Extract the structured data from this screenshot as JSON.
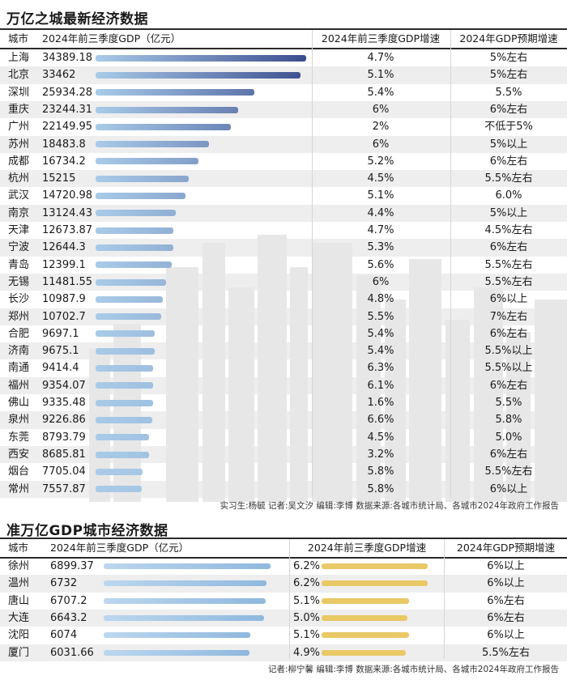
{
  "section1": {
    "title": "万亿之城最新经济数据",
    "headers": {
      "city": "城市",
      "gdp": "2024年前三季度GDP（亿元）",
      "growth": "2024年前三季度GDP增速",
      "target": "2024年GDP预期增速"
    },
    "footnote": "实习生:杨毓  记者:吴文汐  编辑:李博  数据来源:各城市统计局、各城市2024年政府工作报告"
  },
  "section2": {
    "title": "准万亿GDP城市经济数据",
    "headers": {
      "city": "城市",
      "gdp": "2024年前三季度GDP（亿元）",
      "growth": "2024年前三季度GDP增速",
      "target": "2024年GDP预期增速"
    },
    "footnote": "记者:柳宁馨  编辑:李博  数据来源:各城市统计局、各城市2024年政府工作报告"
  },
  "colors": {
    "bar_dark": "#3b4d8f",
    "bar_light": "#a9cbe8",
    "bar_gold": "#e9c866",
    "zebra": "#e8e8e8",
    "rule": "#2a2a2a"
  },
  "chart_data": [
    {
      "type": "table",
      "title": "万亿之城最新经济数据",
      "columns": [
        "城市",
        "2024年前三季度GDP（亿元）",
        "2024年前三季度GDP增速",
        "2024年GDP预期增速"
      ],
      "gdp_range": [
        0,
        34389.18
      ],
      "rows": [
        {
          "city": "上海",
          "gdp": 34389.18,
          "gdp_label": "34389.18",
          "growth": "4.7%",
          "target": "5%左右"
        },
        {
          "city": "北京",
          "gdp": 33462,
          "gdp_label": "33462",
          "growth": "5.1%",
          "target": "5%左右"
        },
        {
          "city": "深圳",
          "gdp": 25934.28,
          "gdp_label": "25934.28",
          "growth": "5.4%",
          "target": "5.5%"
        },
        {
          "city": "重庆",
          "gdp": 23244.31,
          "gdp_label": "23244.31",
          "growth": "6%",
          "target": "6%左右"
        },
        {
          "city": "广州",
          "gdp": 22149.95,
          "gdp_label": "22149.95",
          "growth": "2%",
          "target": "不低于5%"
        },
        {
          "city": "苏州",
          "gdp": 18483.8,
          "gdp_label": "18483.8",
          "growth": "6%",
          "target": "5%以上"
        },
        {
          "city": "成都",
          "gdp": 16734.2,
          "gdp_label": "16734.2",
          "growth": "5.2%",
          "target": "6%左右"
        },
        {
          "city": "杭州",
          "gdp": 15215,
          "gdp_label": "15215",
          "growth": "4.5%",
          "target": "5.5%左右"
        },
        {
          "city": "武汉",
          "gdp": 14720.98,
          "gdp_label": "14720.98",
          "growth": "5.1%",
          "target": "6.0%"
        },
        {
          "city": "南京",
          "gdp": 13124.43,
          "gdp_label": "13124.43",
          "growth": "4.4%",
          "target": "5%以上"
        },
        {
          "city": "天津",
          "gdp": 12673.87,
          "gdp_label": "12673.87",
          "growth": "4.7%",
          "target": "4.5%左右"
        },
        {
          "city": "宁波",
          "gdp": 12644.3,
          "gdp_label": "12644.3",
          "growth": "5.3%",
          "target": "6%左右"
        },
        {
          "city": "青岛",
          "gdp": 12399.1,
          "gdp_label": "12399.1",
          "growth": "5.6%",
          "target": "5.5%左右"
        },
        {
          "city": "无锡",
          "gdp": 11481.55,
          "gdp_label": "11481.55",
          "growth": "6%",
          "target": "5.5%左右"
        },
        {
          "city": "长沙",
          "gdp": 10987.9,
          "gdp_label": "10987.9",
          "growth": "4.8%",
          "target": "6%以上"
        },
        {
          "city": "郑州",
          "gdp": 10702.7,
          "gdp_label": "10702.7",
          "growth": "5.5%",
          "target": "7%左右"
        },
        {
          "city": "合肥",
          "gdp": 9697.1,
          "gdp_label": "9697.1",
          "growth": "5.4%",
          "target": "6%左右"
        },
        {
          "city": "济南",
          "gdp": 9675.1,
          "gdp_label": "9675.1",
          "growth": "5.4%",
          "target": "5.5%以上"
        },
        {
          "city": "南通",
          "gdp": 9414.4,
          "gdp_label": "9414.4",
          "growth": "6.3%",
          "target": "5.5%以上"
        },
        {
          "city": "福州",
          "gdp": 9354.07,
          "gdp_label": "9354.07",
          "growth": "6.1%",
          "target": "6%左右"
        },
        {
          "city": "佛山",
          "gdp": 9335.48,
          "gdp_label": "9335.48",
          "growth": "1.6%",
          "target": "5.5%"
        },
        {
          "city": "泉州",
          "gdp": 9226.86,
          "gdp_label": "9226.86",
          "growth": "6.6%",
          "target": "5.8%"
        },
        {
          "city": "东莞",
          "gdp": 8793.79,
          "gdp_label": "8793.79",
          "growth": "4.5%",
          "target": "5.0%"
        },
        {
          "city": "西安",
          "gdp": 8685.81,
          "gdp_label": "8685.81",
          "growth": "3.2%",
          "target": "6%左右"
        },
        {
          "city": "烟台",
          "gdp": 7705.04,
          "gdp_label": "7705.04",
          "growth": "5.8%",
          "target": "5.5%左右"
        },
        {
          "city": "常州",
          "gdp": 7557.87,
          "gdp_label": "7557.87",
          "growth": "5.8%",
          "target": "6%以上"
        }
      ]
    },
    {
      "type": "table",
      "title": "准万亿GDP城市经济数据",
      "columns": [
        "城市",
        "2024年前三季度GDP（亿元）",
        "2024年前三季度GDP增速",
        "2024年GDP预期增速"
      ],
      "gdp_range": [
        0,
        6899.37
      ],
      "growth_range": [
        0,
        6.2
      ],
      "rows": [
        {
          "city": "徐州",
          "gdp": 6899.37,
          "gdp_label": "6899.37",
          "growth_value": 6.2,
          "growth": "6.2%",
          "target": "6%以上"
        },
        {
          "city": "温州",
          "gdp": 6732,
          "gdp_label": "6732",
          "growth_value": 6.2,
          "growth": "6.2%",
          "target": "6%以上"
        },
        {
          "city": "唐山",
          "gdp": 6707.2,
          "gdp_label": "6707.2",
          "growth_value": 5.1,
          "growth": "5.1%",
          "target": "6%左右"
        },
        {
          "city": "大连",
          "gdp": 6643.2,
          "gdp_label": "6643.2",
          "growth_value": 5.0,
          "growth": "5.0%",
          "target": "6%左右"
        },
        {
          "city": "沈阳",
          "gdp": 6074,
          "gdp_label": "6074",
          "growth_value": 5.1,
          "growth": "5.1%",
          "target": "6%以上"
        },
        {
          "city": "厦门",
          "gdp": 6031.66,
          "gdp_label": "6031.66",
          "growth_value": 4.9,
          "growth": "4.9%",
          "target": "5.5%左右"
        }
      ]
    }
  ]
}
